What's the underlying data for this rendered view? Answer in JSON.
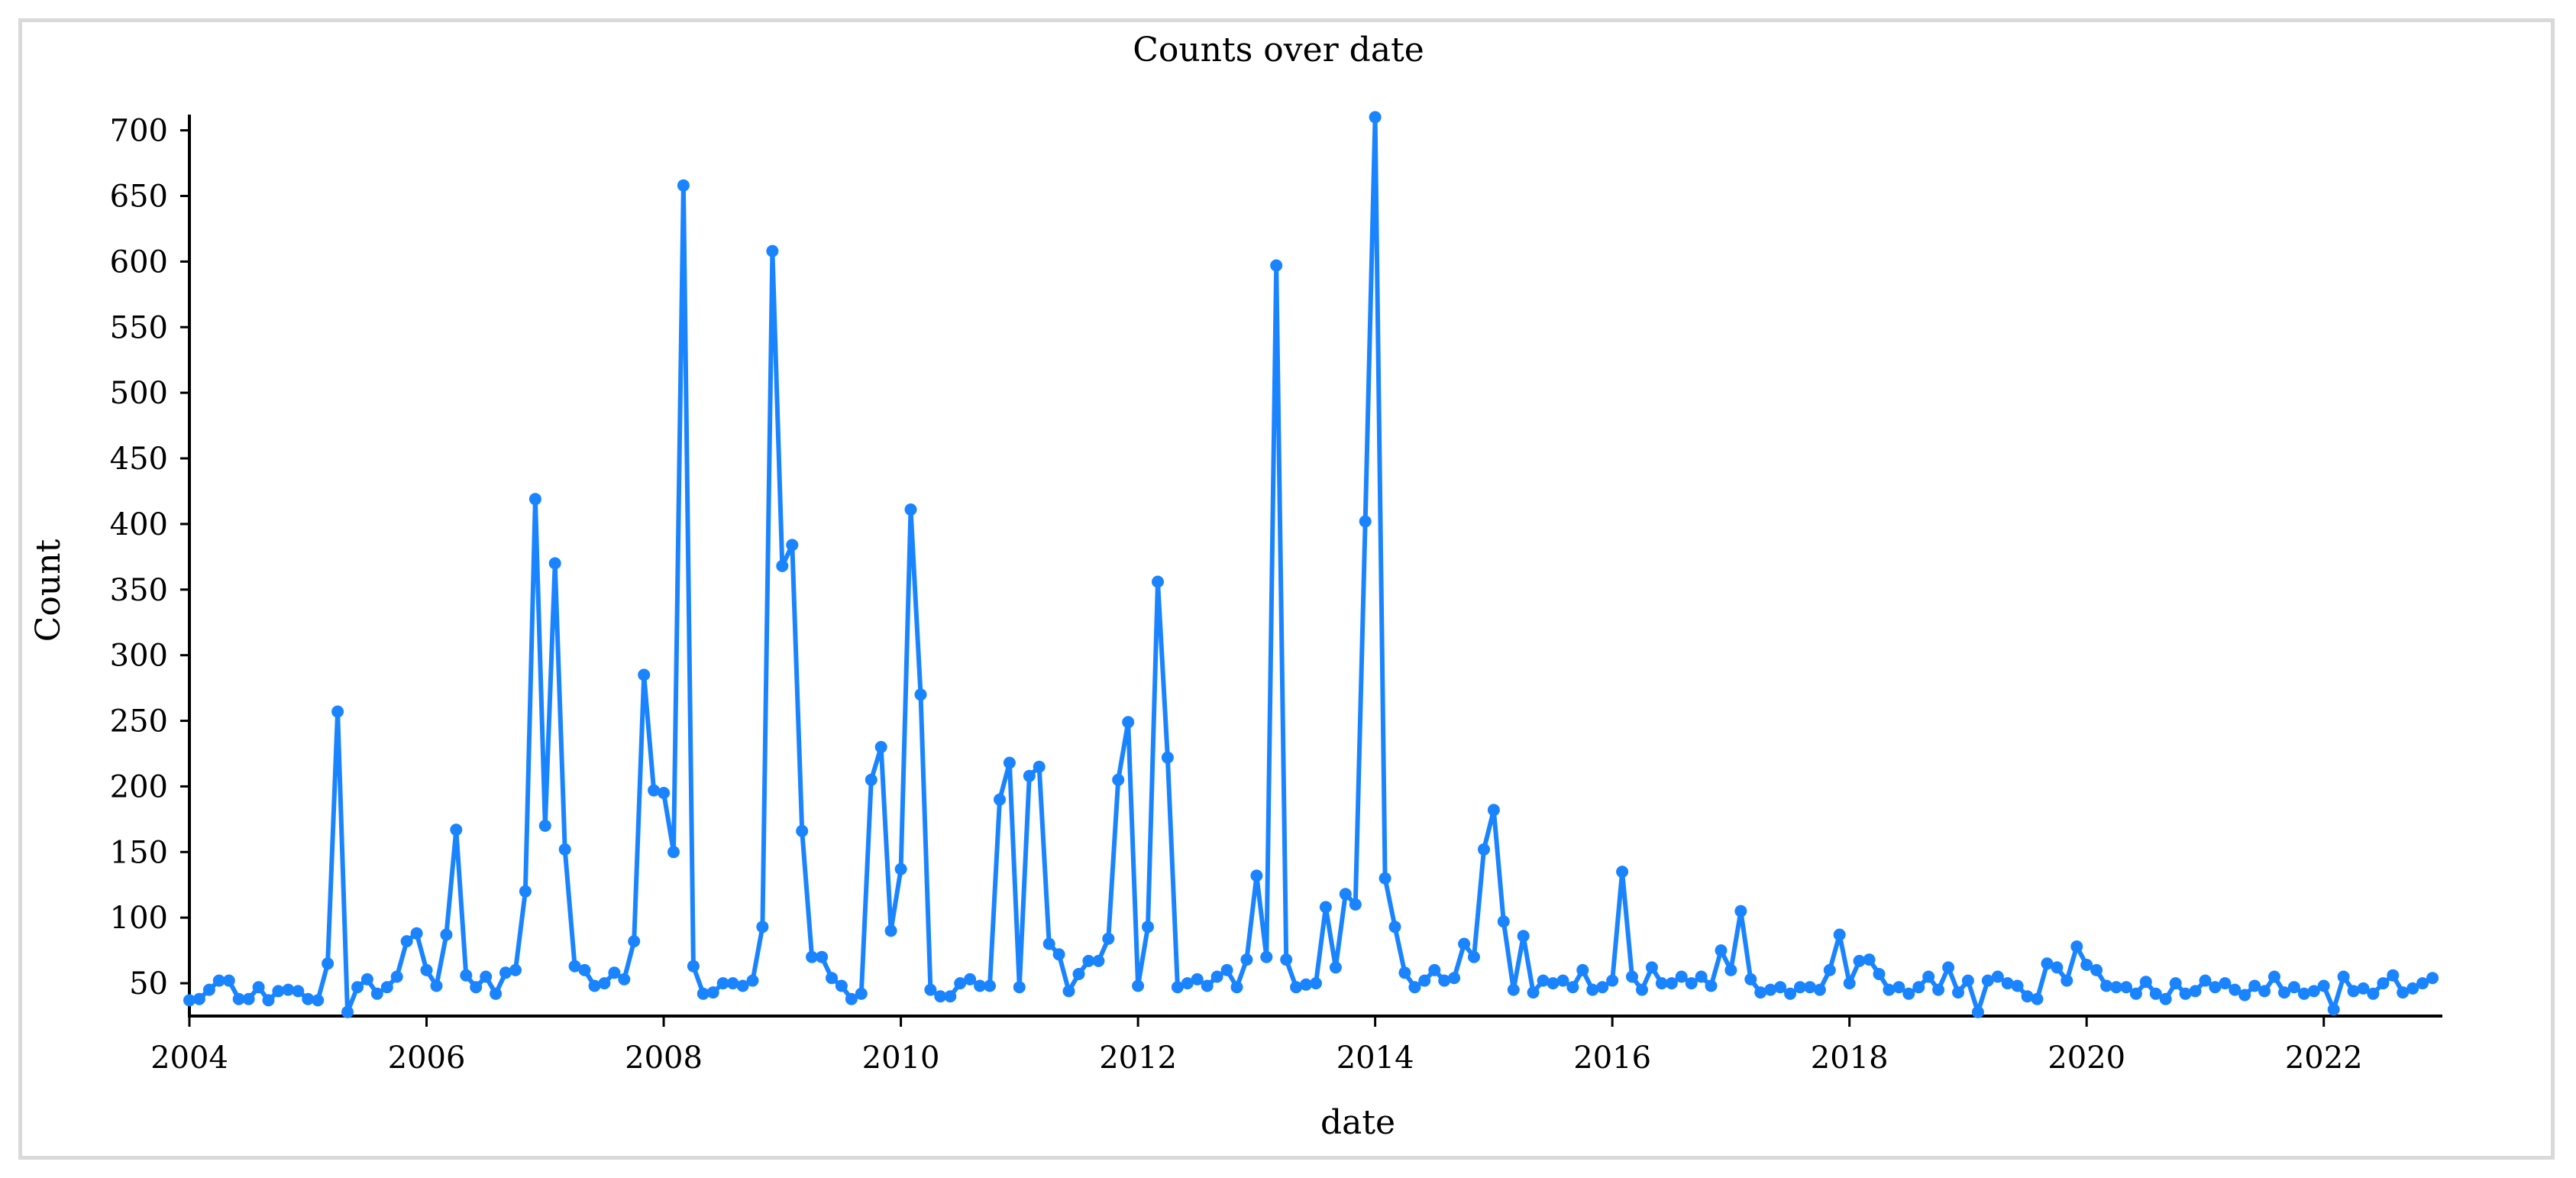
{
  "chart_data": {
    "type": "line",
    "title": "Counts over date",
    "xlabel": "date",
    "ylabel": "Count",
    "x_range": [
      "2004-01",
      "2023-01"
    ],
    "ylim": [
      25,
      712
    ],
    "x_ticks": [
      "2004",
      "2006",
      "2008",
      "2010",
      "2012",
      "2014",
      "2016",
      "2018",
      "2020",
      "2022"
    ],
    "y_ticks": [
      50,
      100,
      150,
      200,
      250,
      300,
      350,
      400,
      450,
      500,
      550,
      600,
      650,
      700
    ],
    "grid": false,
    "legend": "none",
    "color": "#1a84ff",
    "series": [
      {
        "start": "2004-01",
        "frequency": "monthly",
        "values": [
          37,
          38,
          45,
          52,
          52,
          38,
          38,
          47,
          37,
          44,
          45,
          44,
          38,
          37,
          65,
          257,
          28,
          47,
          53,
          42,
          47,
          55,
          82,
          88,
          60,
          48,
          87,
          167,
          56,
          47,
          55,
          42,
          58,
          60,
          120,
          419,
          170,
          370,
          152,
          63,
          60,
          48,
          50,
          58,
          53,
          82,
          285,
          197,
          195,
          150,
          658,
          63,
          42,
          43,
          50,
          50,
          48,
          52,
          93,
          608,
          368,
          384,
          166,
          70,
          70,
          54,
          48,
          38,
          42,
          205,
          230,
          90,
          137,
          411,
          270,
          45,
          40,
          40,
          50,
          53,
          48,
          48,
          190,
          218,
          47,
          208,
          215,
          80,
          72,
          44,
          57,
          67,
          67,
          84,
          205,
          249,
          48,
          93,
          356,
          222,
          47,
          50,
          53,
          48,
          55,
          60,
          47,
          68,
          132,
          70,
          597,
          68,
          47,
          49,
          50,
          108,
          62,
          118,
          110,
          402,
          710,
          130,
          93,
          58,
          47,
          52,
          60,
          52,
          54,
          80,
          70,
          152,
          182,
          97,
          45,
          86,
          43,
          52,
          50,
          52,
          47,
          60,
          45,
          47,
          52,
          135,
          55,
          45,
          62,
          50,
          50,
          55,
          50,
          55,
          48,
          75,
          60,
          105,
          53,
          43,
          45,
          47,
          42,
          47,
          47,
          45,
          60,
          87,
          50,
          67,
          68,
          57,
          45,
          47,
          42,
          47,
          55,
          45,
          62,
          43,
          52,
          28,
          52,
          55,
          50,
          48,
          40,
          38,
          65,
          62,
          52,
          78,
          64,
          60,
          48,
          47,
          47,
          42,
          51,
          42,
          38,
          50,
          42,
          44,
          52,
          47,
          50,
          45,
          41,
          48,
          44,
          55,
          43,
          47,
          42,
          44,
          48,
          30,
          55,
          44,
          46,
          42,
          50,
          56,
          43,
          46,
          50,
          54
        ]
      }
    ]
  }
}
